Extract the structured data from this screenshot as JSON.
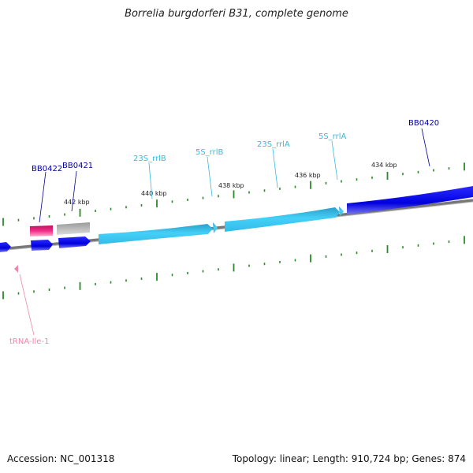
{
  "title": "Borrelia burgdorferi B31, complete genome",
  "footer": {
    "accession": "Accession: NC_001318",
    "summary": "Topology: linear; Length: 910,724 bp; Genes: 874"
  },
  "scale_labels": [
    "442 kbp",
    "440 kbp",
    "438 kbp",
    "436 kbp",
    "434 kbp"
  ],
  "features": [
    {
      "label": "BB0422",
      "color": "#000099"
    },
    {
      "label": "BB0421",
      "color": "#000099"
    },
    {
      "label": "23S_rrlB",
      "color": "#33bbdd"
    },
    {
      "label": "5S_rrlB",
      "color": "#33bbdd"
    },
    {
      "label": "23S_rrlA",
      "color": "#33bbdd"
    },
    {
      "label": "5S_rrlA",
      "color": "#33bbdd"
    },
    {
      "label": "BB0420",
      "color": "#000099"
    },
    {
      "label": "tRNA-Ile-1",
      "color": "#ee88aa"
    }
  ],
  "colors": {
    "cds_blue": "#0000ee",
    "rrna_cyan": "#33ccf0",
    "pseudo_pink": "#e8207a",
    "gray_gene": "#aaaaaa",
    "tick_green": "#2a8a2a",
    "backbone": "#777777"
  }
}
